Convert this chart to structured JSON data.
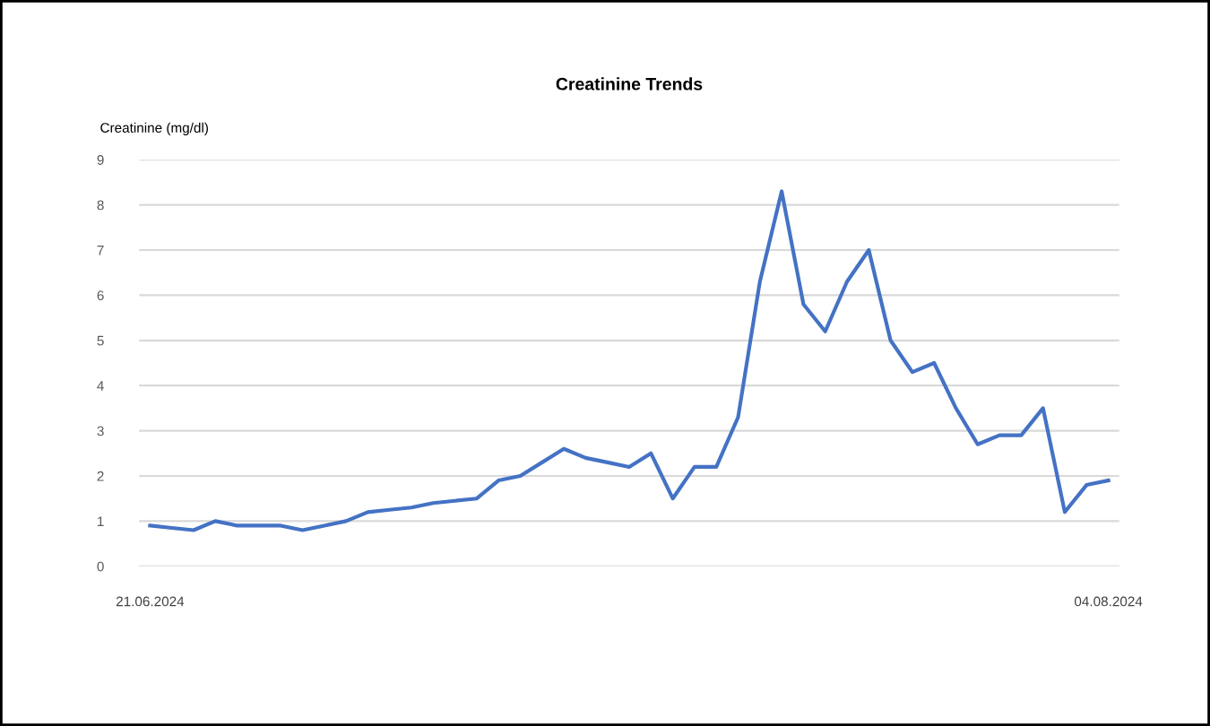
{
  "chart_data": {
    "type": "line",
    "title": "Creatinine Trends",
    "ylabel": "Creatinine (mg/dl)",
    "categories": [
      "21.06.2024",
      null,
      null,
      null,
      null,
      null,
      null,
      null,
      null,
      null,
      null,
      null,
      null,
      null,
      null,
      null,
      null,
      null,
      null,
      null,
      null,
      null,
      null,
      null,
      null,
      null,
      null,
      null,
      null,
      null,
      null,
      null,
      null,
      null,
      null,
      null,
      null,
      null,
      null,
      null,
      null,
      null,
      null,
      null,
      "04.08.2024"
    ],
    "series": [
      {
        "color": "#4472c4",
        "values": [
          0.9,
          0.85,
          0.8,
          1.0,
          0.9,
          0.9,
          0.9,
          0.8,
          0.9,
          1.0,
          1.2,
          1.25,
          1.3,
          1.4,
          1.45,
          1.5,
          1.9,
          2.0,
          2.3,
          2.6,
          2.4,
          2.3,
          2.2,
          2.5,
          1.5,
          2.2,
          2.2,
          3.3,
          6.3,
          8.3,
          5.8,
          5.2,
          6.3,
          7.0,
          5.0,
          4.3,
          4.5,
          3.5,
          2.7,
          2.9,
          2.9,
          3.5,
          1.2,
          1.8,
          1.9
        ]
      }
    ],
    "ylim": [
      0,
      9
    ],
    "yticks": [
      0,
      1,
      2,
      3,
      4,
      5,
      6,
      7,
      8,
      9
    ],
    "grid": "y",
    "marker": "none",
    "line_style": "solid"
  }
}
